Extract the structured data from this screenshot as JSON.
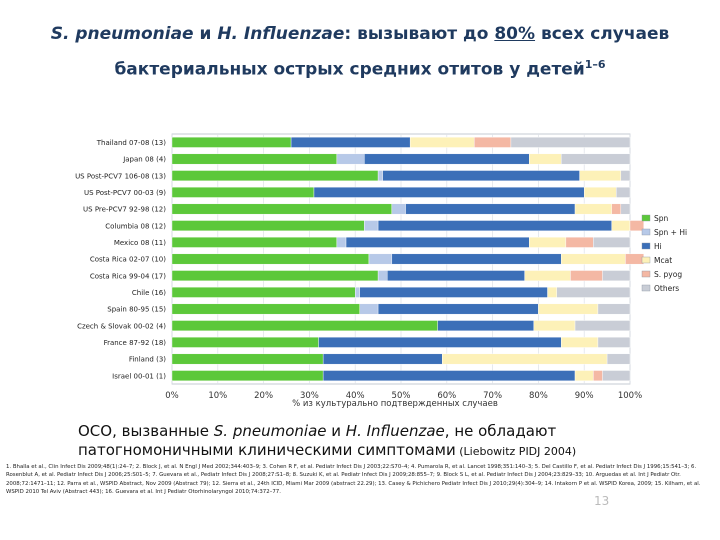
{
  "title": {
    "line1_species1": "S. pneumoniae",
    "line1_and": " и ",
    "line1_species2": "H. Influenzae",
    "line1_mid": ": вызывают до ",
    "line1_pct": "80%",
    "line1_end": "  всех случаев",
    "line2_text": "бактериальных острых средних отитов у детей",
    "line2_sup": "1–6"
  },
  "chart_data": {
    "type": "bar",
    "orientation": "horizontal",
    "stacked": true,
    "xlabel": "% из культурально подтвержденных случаев",
    "xlim": [
      0,
      100
    ],
    "xticks": [
      "0%",
      "10%",
      "20%",
      "30%",
      "40%",
      "50%",
      "60%",
      "70%",
      "80%",
      "90%",
      "100%"
    ],
    "legend_position": "right",
    "categories": [
      "Thailand 07-08 (13)",
      "Japan 08 (4)",
      "US Post-PCV7 106-08 (13)",
      "US Post-PCV7 00-03 (9)",
      "US Pre-PCV7 92-98 (12)",
      "Columbia 08 (12)",
      "Mexico 08 (11)",
      "Costa Rica 02-07 (10)",
      "Costa Rica 99-04 (17)",
      "Chile (16)",
      "Spain 80-95 (15)",
      "Czech & Slovak 00-02 (4)",
      "France 87-92 (18)",
      "Finland (3)",
      "Israel 00-01 (1)"
    ],
    "series": [
      {
        "name": "Spn",
        "color": "#5cc83a",
        "values": [
          26,
          36,
          45,
          31,
          48,
          42,
          36,
          43,
          45,
          40,
          41,
          58,
          32,
          33,
          33
        ]
      },
      {
        "name": "Spn + Hi",
        "color": "#b7c9e8",
        "values": [
          0,
          6,
          1,
          0,
          3,
          3,
          2,
          5,
          2,
          1,
          4,
          0,
          0,
          0,
          0
        ]
      },
      {
        "name": "Hi",
        "color": "#3b6fb8",
        "values": [
          26,
          36,
          43,
          59,
          37,
          51,
          40,
          37,
          30,
          41,
          35,
          21,
          53,
          26,
          55
        ]
      },
      {
        "name": "Mcat",
        "color": "#fdf1b8",
        "values": [
          14,
          7,
          9,
          7,
          8,
          4,
          8,
          14,
          10,
          2,
          13,
          9,
          8,
          36,
          4
        ]
      },
      {
        "name": "S. pyog",
        "color": "#f4b8a4",
        "values": [
          8,
          0,
          0,
          0,
          2,
          3,
          6,
          4,
          7,
          0,
          0,
          0,
          0,
          0,
          2
        ]
      },
      {
        "name": "Others",
        "color": "#c9cdd6",
        "values": [
          26,
          15,
          2,
          3,
          2,
          0,
          8,
          0,
          6,
          16,
          7,
          12,
          7,
          5,
          6
        ]
      }
    ]
  },
  "conclusion": {
    "text_start": "ОСО, вызванные ",
    "sp": "S. pneumoniae",
    "and": " и ",
    "hi": "H. Influenzae",
    "text_end": ", не обладают патогномоничными клиническими симптомами",
    "source": " (Liebowitz PIDJ 2004)"
  },
  "references": "1. Bhalla et al., Clin Infect Dis 2009;48(1):24–7; 2. Block J, et al. N Engl J Med 2002;344:403–9; 3. Cohen R F, et al. Pediatr Infect Dis J 2003;22:S70–4; 4. Pumarola R, et al. Lancet 1998;351:140–3; 5. Del Castillo F, et al. Pediatr Infect Dis J 1996;15:541–3; 6. Rosenblut A, et al. Pediatr Infect Dis J 2006;25:S01–5; 7. Guevara et al., Pediatr Infect Dis J 2008;27:S1–8; 8. Suzuki K, et al. Pediatr Infect Dis J 2009;28:855–7; 9. Block S L, et al. Pediatr Infect Dis J 2004;23:829–33; 10. Arguedas et al. Int J Pediatr Otr. 2008;72:1471–11; 12. Parra et al., WSPID Abstract, Nov 2009 (Abstract 79); 12. Sierra et al., 24th ICID, Miami Mar 2009 (abstract 22.29); 13. Casey & Pichichero Pediatr Infect Dis J 2010;29(4):304–9; 14. Intakorn P et al. WSPID Korea, 2009; 15. Kilham, et al. WSPID 2010 Tel Aviv (Abstract 443); 16. Guevara et al. Int J Pediatr Otorhinolaryngol 2010;74:372–77.",
  "page_number": "13"
}
